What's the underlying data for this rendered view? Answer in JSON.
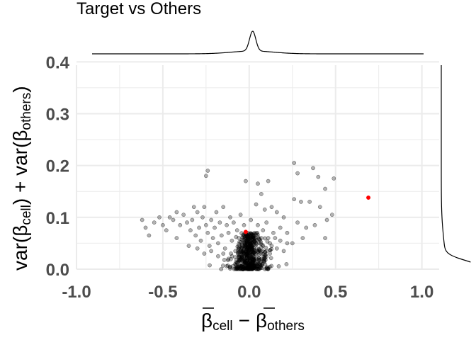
{
  "chart_data": {
    "type": "scatter",
    "title": "Target vs Others",
    "xlabel": {
      "symbol": "β",
      "sub1": "cell",
      "minus": "−",
      "sub2": "others"
    },
    "ylabel": {
      "prefix": "var(",
      "symbol": "β",
      "sub1": "cell",
      "mid": ") + var(",
      "sub2": "others",
      "suffix": ")"
    },
    "xlim": [
      -1.0,
      1.1
    ],
    "ylim": [
      0.0,
      0.41
    ],
    "x_ticks": [
      -1.0,
      -0.5,
      0.0,
      0.5,
      1.0
    ],
    "x_tick_labels": [
      "-1.0",
      "-0.5",
      "0.0",
      "0.5",
      "1.0"
    ],
    "y_ticks": [
      0.0,
      0.1,
      0.2,
      0.3,
      0.4
    ],
    "y_tick_labels": [
      "0.0",
      "0.1",
      "0.2",
      "0.3",
      "0.4"
    ],
    "grid": true,
    "colors": {
      "others": "#000000",
      "target": "#ff0000",
      "grid": "#ebebeb"
    },
    "others_points": [
      [
        -0.24,
        0.19
      ],
      [
        -0.25,
        0.18
      ],
      [
        -0.02,
        0.17
      ],
      [
        0.05,
        0.165
      ],
      [
        0.11,
        0.17
      ],
      [
        0.26,
        0.205
      ],
      [
        0.28,
        0.185
      ],
      [
        0.37,
        0.195
      ],
      [
        0.4,
        0.178
      ],
      [
        0.49,
        0.175
      ],
      [
        0.44,
        0.155
      ],
      [
        0.26,
        0.135
      ],
      [
        0.3,
        0.13
      ],
      [
        0.07,
        0.145
      ],
      [
        0.04,
        0.125
      ],
      [
        0.13,
        0.12
      ],
      [
        0.16,
        0.11
      ],
      [
        0.2,
        0.1
      ],
      [
        0.35,
        0.13
      ],
      [
        0.41,
        0.12
      ],
      [
        0.38,
        0.085
      ],
      [
        0.45,
        0.095
      ],
      [
        0.48,
        0.105
      ],
      [
        0.28,
        0.09
      ],
      [
        0.33,
        0.08
      ],
      [
        0.31,
        0.06
      ],
      [
        0.44,
        0.06
      ],
      [
        0.25,
        0.05
      ],
      [
        0.22,
        0.07
      ],
      [
        0.18,
        0.08
      ],
      [
        0.15,
        0.06
      ],
      [
        0.12,
        0.05
      ],
      [
        0.1,
        0.09
      ],
      [
        0.08,
        0.075
      ],
      [
        0.09,
        0.115
      ],
      [
        -0.62,
        0.095
      ],
      [
        -0.6,
        0.08
      ],
      [
        -0.58,
        0.065
      ],
      [
        -0.55,
        0.09
      ],
      [
        -0.52,
        0.1
      ],
      [
        -0.5,
        0.085
      ],
      [
        -0.48,
        0.075
      ],
      [
        -0.46,
        0.1
      ],
      [
        -0.44,
        0.095
      ],
      [
        -0.42,
        0.06
      ],
      [
        -0.4,
        0.085
      ],
      [
        -0.38,
        0.105
      ],
      [
        -0.36,
        0.09
      ],
      [
        -0.34,
        0.075
      ],
      [
        -0.33,
        0.095
      ],
      [
        -0.31,
        0.065
      ],
      [
        -0.3,
        0.11
      ],
      [
        -0.29,
        0.08
      ],
      [
        -0.28,
        0.055
      ],
      [
        -0.27,
        0.1
      ],
      [
        -0.26,
        0.12
      ],
      [
        -0.25,
        0.085
      ],
      [
        -0.24,
        0.07
      ],
      [
        -0.23,
        0.045
      ],
      [
        -0.22,
        0.095
      ],
      [
        -0.21,
        0.06
      ],
      [
        -0.2,
        0.08
      ],
      [
        -0.19,
        0.11
      ],
      [
        -0.18,
        0.05
      ],
      [
        -0.17,
        0.09
      ],
      [
        -0.16,
        0.065
      ],
      [
        -0.15,
        0.12
      ],
      [
        -0.14,
        0.04
      ],
      [
        -0.13,
        0.085
      ],
      [
        -0.12,
        0.07
      ],
      [
        -0.11,
        0.1
      ],
      [
        -0.1,
        0.055
      ],
      [
        -0.09,
        0.09
      ],
      [
        -0.08,
        0.035
      ],
      [
        -0.07,
        0.075
      ],
      [
        -0.06,
        0.06
      ],
      [
        -0.05,
        0.105
      ],
      [
        -0.04,
        0.045
      ],
      [
        -0.03,
        0.085
      ],
      [
        -0.02,
        0.03
      ],
      [
        -0.01,
        0.065
      ],
      [
        0.0,
        0.05
      ],
      [
        0.01,
        0.095
      ],
      [
        0.02,
        0.04
      ],
      [
        0.03,
        0.07
      ],
      [
        0.04,
        0.055
      ],
      [
        0.05,
        0.085
      ],
      [
        0.06,
        0.035
      ],
      [
        0.07,
        0.06
      ],
      [
        0.08,
        0.045
      ],
      [
        0.09,
        0.025
      ],
      [
        0.1,
        0.035
      ],
      [
        0.11,
        0.06
      ],
      [
        0.12,
        0.03
      ],
      [
        0.13,
        0.045
      ],
      [
        0.14,
        0.07
      ],
      [
        0.16,
        0.04
      ],
      [
        0.18,
        0.055
      ],
      [
        0.2,
        0.035
      ],
      [
        0.22,
        0.05
      ],
      [
        -0.35,
        0.045
      ],
      [
        -0.3,
        0.04
      ],
      [
        -0.26,
        0.03
      ],
      [
        -0.22,
        0.035
      ],
      [
        -0.18,
        0.025
      ],
      [
        -0.15,
        0.03
      ],
      [
        -0.12,
        0.02
      ],
      [
        -0.1,
        0.025
      ],
      [
        -0.32,
        0.12
      ],
      [
        -0.42,
        0.11
      ]
    ],
    "target_point": [
      0.69,
      0.138
    ],
    "target_point_2": [
      -0.02,
      0.072
    ],
    "cluster": {
      "center_x": 0.0,
      "spread_x": 0.06,
      "y_min": 0.0,
      "y_max": 0.07,
      "count": 520
    },
    "marginal_x_density_peak": 0.02,
    "marginal_y_density_peak": 0.005
  }
}
